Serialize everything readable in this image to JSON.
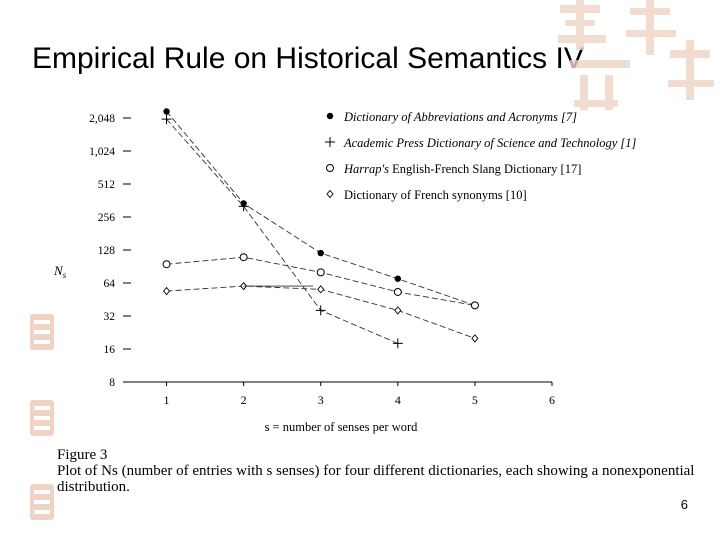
{
  "slide": {
    "title": "Empirical Rule on Historical Semantics IV",
    "page_number": "6"
  },
  "caption": {
    "figure_label": "Figure 3",
    "text": "Plot of Ns (number of entries with s senses) for four different dictionaries, each showing a nonexponential distribution."
  },
  "chart_data": {
    "type": "line",
    "title": "",
    "xlabel": "s = number of senses per word",
    "ylabel": "Ns",
    "x_ticks": [
      1,
      2,
      3,
      4,
      5,
      6
    ],
    "y_scale": "log2",
    "y_ticks": [
      8,
      16,
      32,
      64,
      128,
      256,
      512,
      1024,
      2048
    ],
    "y_tick_labels": [
      "8",
      "16",
      "32",
      "64",
      "128",
      "256",
      "512",
      "1,024",
      "2,048"
    ],
    "xlim": [
      0.5,
      6
    ],
    "ylim": [
      8,
      2048
    ],
    "legend_position": "top-right",
    "series": [
      {
        "name": "Dictionary of Abbreviations and Acronyms [7]",
        "marker": "filled-circle",
        "italic": true,
        "x": [
          1,
          2,
          3,
          4,
          5
        ],
        "y": [
          2350,
          340,
          120,
          70,
          40
        ]
      },
      {
        "name": "Academic Press Dictionary of Science and Technology [1]",
        "marker": "plus",
        "italic": true,
        "x": [
          1,
          2,
          3,
          4
        ],
        "y": [
          2000,
          320,
          36,
          18
        ]
      },
      {
        "name": "Harrap's English-French Slang Dictionary [17]",
        "marker": "open-circle",
        "italic_prefix": "Harrap's",
        "x": [
          1,
          2,
          3,
          4,
          5
        ],
        "y": [
          95,
          110,
          80,
          53,
          40
        ]
      },
      {
        "name": "Dictionary of French synonyms [10]",
        "marker": "open-diamond",
        "italic": false,
        "x": [
          1,
          2,
          3,
          4,
          5
        ],
        "y": [
          54,
          60,
          56,
          36,
          20
        ]
      }
    ],
    "extra_segments": [
      {
        "x": [
          2,
          2.9
        ],
        "y": [
          60,
          60
        ]
      }
    ]
  }
}
